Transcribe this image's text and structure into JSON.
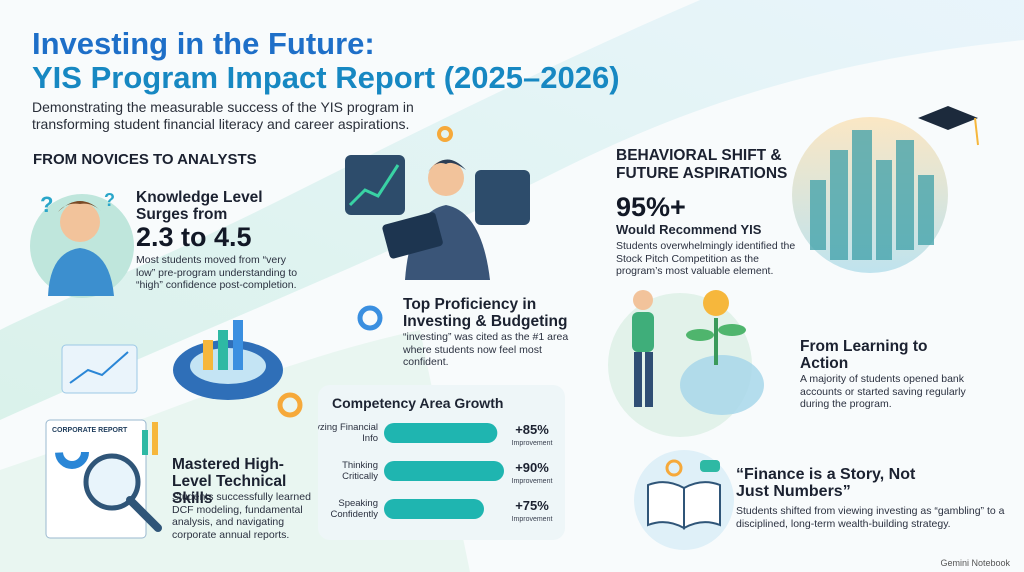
{
  "header": {
    "title_line1": "Investing in the Future:",
    "title_line2": "YIS Program Impact Report (2025–2026)",
    "subtitle": "Demonstrating the measurable success of the YIS program in transforming student financial literacy and career aspirations."
  },
  "left_section": {
    "heading": "FROM NOVICES TO ANALYSTS",
    "knowledge": {
      "title": "Knowledge Level Surges from",
      "highlight": "2.3 to 4.5",
      "text": "Most students moved from “very low” pre-program understanding to “high” confidence post-completion."
    },
    "proficiency": {
      "title": "Top Proficiency in Investing & Budgeting",
      "text": "“investing” was cited as the #1 area where students now feel most confident."
    },
    "report_label": "CORPORATE REPORT",
    "technical": {
      "title": "Mastered High-Level Technical Skills",
      "text": "Students successfully learned DCF modeling, fundamental analysis, and navigating corporate annual reports."
    }
  },
  "competency": {
    "title": "Competency Area Growth",
    "color": "#1fb5b0",
    "items": [
      {
        "label": "Analyzing Financial Info",
        "value": 85,
        "value_label": "+85%",
        "note": "Improvement"
      },
      {
        "label": "Thinking Critically",
        "value": 90,
        "value_label": "+90%",
        "note": "Improvement"
      },
      {
        "label": "Speaking Confidently",
        "value": 75,
        "value_label": "+75%",
        "note": "Improvement"
      }
    ]
  },
  "right_section": {
    "heading": "BEHAVIORAL SHIFT & FUTURE ASPIRATIONS",
    "recommend": {
      "stat": "95%+",
      "title": "Would Recommend YIS",
      "text": "Students overwhelmingly identified the Stock Pitch Competition as the program’s most valuable element."
    },
    "action": {
      "title": "From Learning to Action",
      "text": "A majority of students opened bank accounts or started saving regularly during the program."
    },
    "story": {
      "title": "“Finance is a Story, Not Just Numbers”",
      "text": "Students shifted from viewing investing as “gambling” to a disciplined, long-term wealth-building strategy."
    }
  },
  "footer": {
    "brand": "Gemini Notebook"
  }
}
